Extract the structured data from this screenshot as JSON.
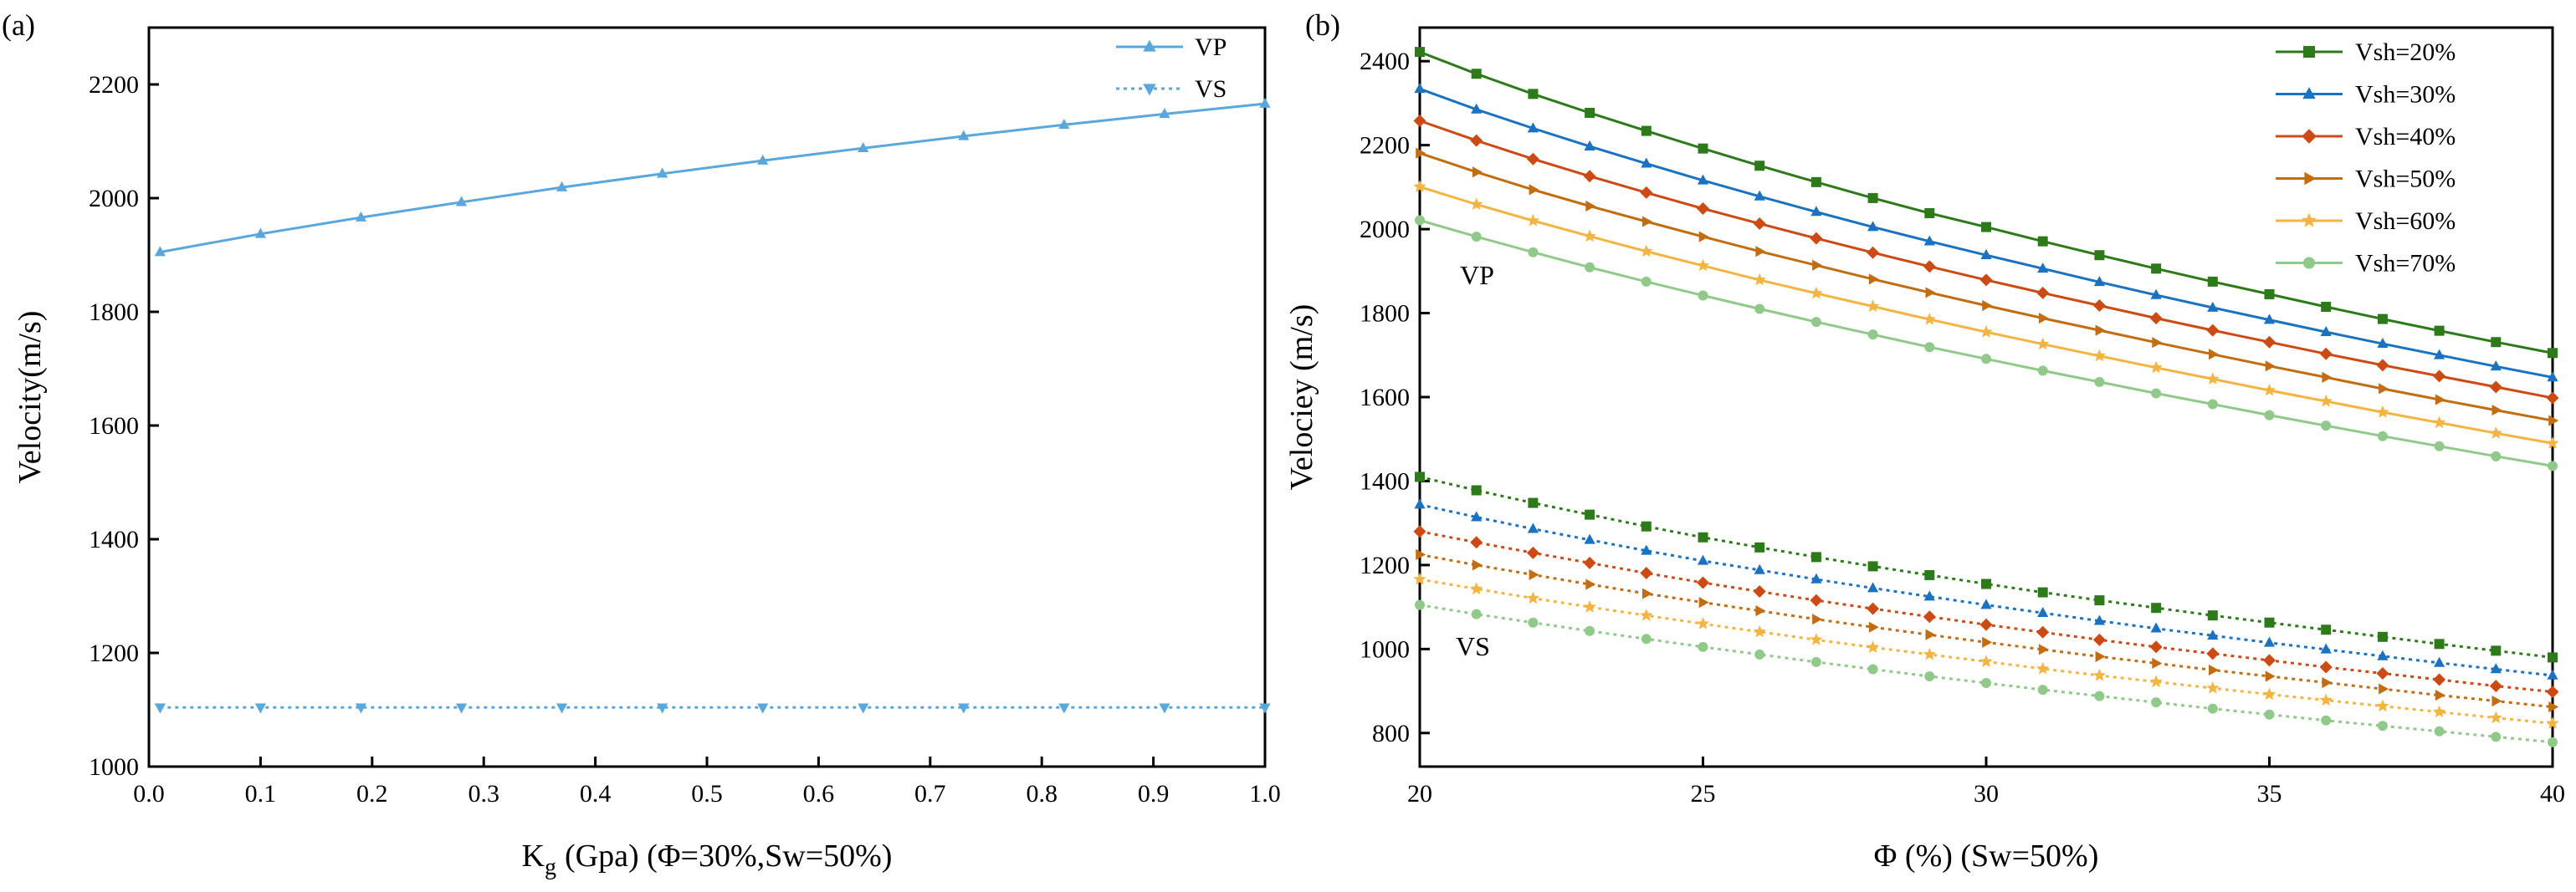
{
  "chart_data": [
    {
      "type": "line",
      "panel_label": "(a)",
      "xlabel": {
        "main": "K",
        "sub": "g",
        "rest": "(Gpa)  (Φ=30%,Sw=50%)"
      },
      "ylabel": "Velocity(m/s)",
      "xlim": [
        0.0,
        1.0
      ],
      "ylim": [
        1000,
        2300
      ],
      "xticks": [
        "0.0",
        "0.1",
        "0.2",
        "0.3",
        "0.4",
        "0.5",
        "0.6",
        "0.7",
        "0.8",
        "0.9",
        "1.0"
      ],
      "yticks": [
        "1000",
        "1200",
        "1400",
        "1600",
        "1800",
        "2000",
        "2200"
      ],
      "x": [
        0.01,
        0.1,
        0.19,
        0.28,
        0.37,
        0.46,
        0.55,
        0.64,
        0.73,
        0.82,
        0.91,
        1.0
      ],
      "series": [
        {
          "name": "VP",
          "color": "#5aa7dc",
          "marker": "triangle-up",
          "dash": "solid",
          "values": [
            1905,
            1937,
            1966,
            1993,
            2019,
            2043,
            2066,
            2088,
            2109,
            2129,
            2148,
            2166
          ]
        },
        {
          "name": "VS",
          "color": "#5aa7dc",
          "marker": "triangle-down",
          "dash": "dotted",
          "values": [
            1104,
            1104,
            1104,
            1104,
            1104,
            1104,
            1104,
            1104,
            1104,
            1104,
            1104,
            1104
          ]
        }
      ],
      "legend": "top-right"
    },
    {
      "type": "line",
      "panel_label": "(b)",
      "xlabel": "Φ (%)  (Sw=50%)",
      "ylabel": "Velociey (m/s)",
      "xlim": [
        20,
        40
      ],
      "ylim": [
        720,
        2480
      ],
      "xticks": [
        "20",
        "25",
        "30",
        "35",
        "40"
      ],
      "yticks": [
        "800",
        "1000",
        "1200",
        "1400",
        "1600",
        "1800",
        "2000",
        "2200",
        "2400"
      ],
      "annotations": [
        "VP",
        "VS"
      ],
      "x": [
        20,
        21,
        22,
        23,
        24,
        25,
        26,
        27,
        28,
        29,
        30,
        31,
        32,
        33,
        34,
        35,
        36,
        37,
        38,
        39,
        40
      ],
      "legend": "top-right",
      "series": [
        {
          "name": "Vsh=20%",
          "color": "#2d7a1a",
          "marker": "square",
          "vp": [
            2422,
            2370,
            2322,
            2277,
            2234,
            2192,
            2151,
            2112,
            2074,
            2038,
            2005,
            1971,
            1938,
            1906,
            1875,
            1845,
            1815,
            1786,
            1758,
            1731,
            1705
          ],
          "vs": [
            1410,
            1378,
            1348,
            1320,
            1292,
            1266,
            1242,
            1219,
            1197,
            1176,
            1155,
            1135,
            1116,
            1098,
            1080,
            1063,
            1046,
            1029,
            1012,
            996,
            980
          ]
        },
        {
          "name": "Vsh=30%",
          "color": "#1a72c0",
          "marker": "triangle-up",
          "vp": [
            2334,
            2285,
            2240,
            2197,
            2156,
            2116,
            2078,
            2041,
            2005,
            1971,
            1938,
            1906,
            1874,
            1843,
            1813,
            1784,
            1755,
            1727,
            1700,
            1673,
            1647
          ],
          "vs": [
            1344,
            1314,
            1286,
            1260,
            1234,
            1210,
            1188,
            1166,
            1145,
            1125,
            1105,
            1086,
            1067,
            1049,
            1032,
            1015,
            999,
            983,
            967,
            952,
            937
          ]
        },
        {
          "name": "Vsh=40%",
          "color": "#cc4a14",
          "marker": "diamond",
          "vp": [
            2258,
            2211,
            2167,
            2126,
            2087,
            2049,
            2013,
            1978,
            1944,
            1911,
            1879,
            1848,
            1818,
            1788,
            1759,
            1731,
            1703,
            1676,
            1650,
            1624,
            1598
          ],
          "vs": [
            1280,
            1254,
            1229,
            1205,
            1181,
            1158,
            1137,
            1116,
            1096,
            1077,
            1058,
            1040,
            1022,
            1005,
            989,
            973,
            957,
            942,
            927,
            912,
            898
          ]
        },
        {
          "name": "Vsh=50%",
          "color": "#c26d12",
          "marker": "triangle-right",
          "vp": [
            2181,
            2136,
            2094,
            2055,
            2018,
            1982,
            1947,
            1914,
            1881,
            1849,
            1818,
            1788,
            1759,
            1730,
            1702,
            1674,
            1647,
            1620,
            1594,
            1569,
            1544
          ],
          "vs": [
            1225,
            1200,
            1177,
            1154,
            1132,
            1111,
            1091,
            1071,
            1052,
            1034,
            1016,
            999,
            982,
            966,
            950,
            935,
            920,
            905,
            890,
            876,
            862
          ]
        },
        {
          "name": "Vsh=60%",
          "color": "#f2b544",
          "marker": "star",
          "vp": [
            2101,
            2059,
            2020,
            1983,
            1947,
            1913,
            1879,
            1847,
            1816,
            1785,
            1755,
            1726,
            1698,
            1670,
            1643,
            1616,
            1590,
            1564,
            1539,
            1514,
            1490
          ],
          "vs": [
            1166,
            1143,
            1121,
            1100,
            1080,
            1060,
            1041,
            1022,
            1004,
            987,
            970,
            953,
            937,
            922,
            907,
            892,
            878,
            864,
            850,
            836,
            823
          ]
        },
        {
          "name": "Vsh=70%",
          "color": "#90c98a",
          "marker": "circle",
          "vp": [
            2021,
            1982,
            1945,
            1909,
            1875,
            1842,
            1810,
            1779,
            1749,
            1719,
            1691,
            1663,
            1636,
            1609,
            1583,
            1557,
            1532,
            1507,
            1483,
            1459,
            1436
          ],
          "vs": [
            1105,
            1083,
            1063,
            1043,
            1024,
            1005,
            987,
            969,
            952,
            935,
            919,
            903,
            888,
            873,
            858,
            844,
            830,
            817,
            804,
            791,
            778
          ]
        }
      ]
    }
  ]
}
